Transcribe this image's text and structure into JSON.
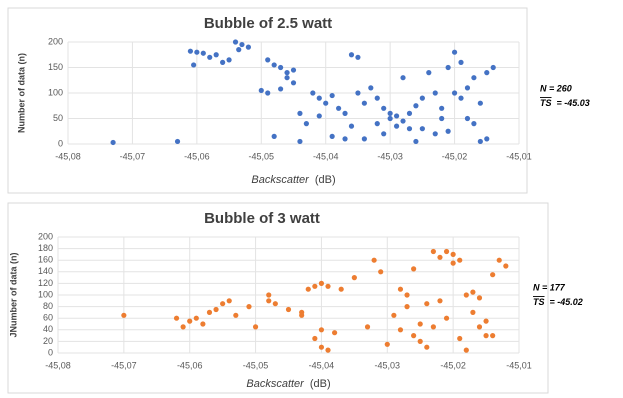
{
  "chart_data": [
    {
      "type": "scatter",
      "title": "Bubble of 2.5 watt",
      "ylabel": "Number of data (n)",
      "xlabel": "Backscatter",
      "xlabel_unit": "(dB)",
      "n_label": "N = 260",
      "ts_symbol": "TS",
      "ts_value": "= -45.03",
      "color": "#4472c4",
      "grid": true,
      "xlim": [
        -45.08,
        -45.01
      ],
      "xticks": [
        {
          "value": -45.08,
          "label": "-45,08"
        },
        {
          "value": -45.07,
          "label": "-45,07"
        },
        {
          "value": -45.06,
          "label": "-45,06"
        },
        {
          "value": -45.05,
          "label": "-45,05"
        },
        {
          "value": -45.04,
          "label": "-45,04"
        },
        {
          "value": -45.03,
          "label": "-45,03"
        },
        {
          "value": -45.02,
          "label": "-45,02"
        },
        {
          "value": -45.01,
          "label": "-45,01"
        }
      ],
      "ylim": [
        0,
        200
      ],
      "yticks": [
        0,
        50,
        100,
        150,
        200
      ],
      "x": [
        -45.073,
        -45.063,
        -45.061,
        -45.06,
        -45.059,
        -45.058,
        -45.057,
        -45.056,
        -45.0605,
        -45.054,
        -45.053,
        -45.052,
        -45.0535,
        -45.055,
        -45.049,
        -45.048,
        -45.047,
        -45.046,
        -45.045,
        -45.046,
        -45.045,
        -45.047,
        -45.049,
        -45.05,
        -45.048,
        -45.044,
        -45.042,
        -45.041,
        -45.04,
        -45.039,
        -45.038,
        -45.037,
        -45.036,
        -45.035,
        -45.035,
        -45.034,
        -45.033,
        -45.032,
        -45.031,
        -45.03,
        -45.029,
        -45.028,
        -45.027,
        -45.026,
        -45.025,
        -45.024,
        -45.023,
        -45.022,
        -45.021,
        -45.02,
        -45.019,
        -45.02,
        -45.019,
        -45.018,
        -45.017,
        -45.016,
        -45.015,
        -45.014,
        -45.015,
        -45.044,
        -45.043,
        -45.041,
        -45.039,
        -45.037,
        -45.034,
        -45.031,
        -45.03,
        -45.029,
        -45.028,
        -45.027,
        -45.026,
        -45.025,
        -45.023,
        -45.022,
        -45.018,
        -45.017,
        -45.016,
        -45.021,
        -45.032,
        -45.036
      ],
      "values": [
        3,
        5,
        182,
        180,
        178,
        170,
        175,
        160,
        155,
        200,
        195,
        190,
        185,
        165,
        165,
        155,
        150,
        140,
        145,
        130,
        120,
        108,
        100,
        105,
        15,
        5,
        100,
        90,
        80,
        95,
        70,
        60,
        175,
        170,
        100,
        10,
        110,
        40,
        20,
        50,
        35,
        130,
        60,
        5,
        30,
        140,
        100,
        70,
        25,
        180,
        160,
        100,
        90,
        50,
        130,
        80,
        140,
        150,
        10,
        60,
        40,
        55,
        15,
        10,
        80,
        70,
        60,
        55,
        45,
        30,
        75,
        90,
        20,
        50,
        110,
        40,
        5,
        150,
        90,
        35
      ]
    },
    {
      "type": "scatter",
      "title": "Bubble of 3 watt",
      "ylabel": "JNumber of data (n)",
      "xlabel": "Backscatter",
      "xlabel_unit": "(dB)",
      "n_label": "N = 177",
      "ts_symbol": "TS",
      "ts_value": "= -45.02",
      "color": "#ed7d31",
      "grid": true,
      "xlim": [
        -45.08,
        -45.01
      ],
      "xticks": [
        {
          "value": -45.08,
          "label": "-45,08"
        },
        {
          "value": -45.07,
          "label": "-45,07"
        },
        {
          "value": -45.06,
          "label": "-45,06"
        },
        {
          "value": -45.05,
          "label": "-45,05"
        },
        {
          "value": -45.04,
          "label": "-45,04"
        },
        {
          "value": -45.03,
          "label": "-45,03"
        },
        {
          "value": -45.02,
          "label": "-45,02"
        },
        {
          "value": -45.01,
          "label": "-45,01"
        }
      ],
      "ylim": [
        0,
        200
      ],
      "yticks": [
        0,
        20,
        40,
        60,
        80,
        100,
        120,
        140,
        160,
        180,
        200
      ],
      "x": [
        -45.07,
        -45.062,
        -45.061,
        -45.06,
        -45.058,
        -45.057,
        -45.056,
        -45.055,
        -45.054,
        -45.053,
        -45.051,
        -45.05,
        -45.048,
        -45.047,
        -45.045,
        -45.043,
        -45.042,
        -45.041,
        -45.04,
        -45.039,
        -45.038,
        -45.04,
        -45.041,
        -45.04,
        -45.039,
        -45.037,
        -45.035,
        -45.033,
        -45.032,
        -45.031,
        -45.03,
        -45.028,
        -45.027,
        -45.026,
        -45.025,
        -45.024,
        -45.023,
        -45.022,
        -45.021,
        -45.02,
        -45.02,
        -45.019,
        -45.018,
        -45.017,
        -45.016,
        -45.015,
        -45.014,
        -45.014,
        -45.013,
        -45.012,
        -45.029,
        -45.028,
        -45.027,
        -45.026,
        -45.025,
        -45.024,
        -45.023,
        -45.022,
        -45.021,
        -45.019,
        -45.018,
        -45.017,
        -45.016,
        -45.015,
        -45.043,
        -45.048,
        -45.059
      ],
      "values": [
        65,
        60,
        45,
        55,
        50,
        70,
        75,
        85,
        90,
        65,
        80,
        45,
        100,
        85,
        75,
        70,
        110,
        115,
        120,
        115,
        35,
        40,
        25,
        10,
        5,
        110,
        130,
        45,
        160,
        140,
        15,
        110,
        100,
        145,
        50,
        85,
        175,
        165,
        175,
        170,
        155,
        160,
        100,
        105,
        95,
        55,
        30,
        135,
        160,
        150,
        65,
        40,
        80,
        30,
        20,
        10,
        45,
        90,
        60,
        25,
        5,
        70,
        45,
        30,
        65,
        90,
        60
      ]
    }
  ]
}
